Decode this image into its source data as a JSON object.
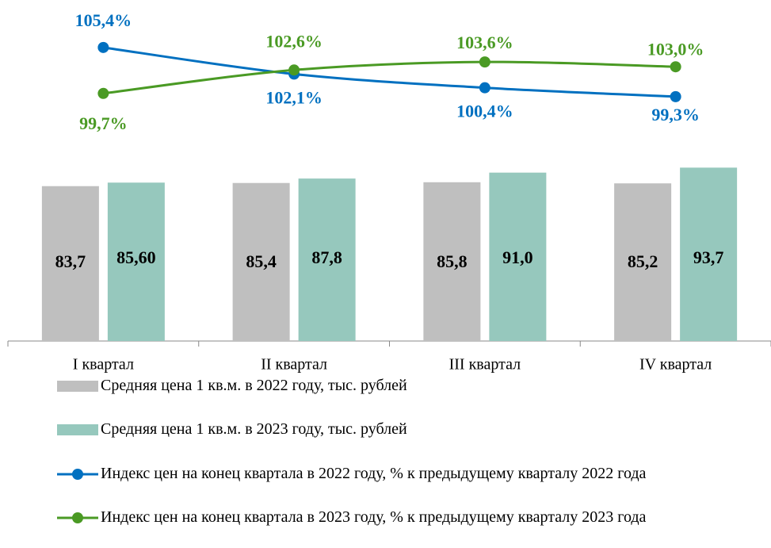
{
  "chart_data": {
    "type": "bar",
    "categories": [
      "I квартал",
      "II квартал",
      "III квартал",
      "IV квартал"
    ],
    "ylim": [
      0,
      180
    ],
    "y2lim": [
      69,
      110.3
    ],
    "series": [
      {
        "name": "Средняя цена 1 кв.м. в 2022 году, тыс. рублей",
        "type": "bar",
        "color": "#bfbfbf",
        "values": [
          83.7,
          85.4,
          85.8,
          85.2
        ],
        "value_labels": [
          "83,7",
          "85,4",
          "85,8",
          "85,2"
        ]
      },
      {
        "name": "Средняя цена 1 кв.м. в 2023 году, тыс. рублей",
        "type": "bar",
        "color": "#96c8bd",
        "values": [
          85.6,
          87.8,
          91.0,
          93.7
        ],
        "value_labels": [
          "85,60",
          "87,8",
          "91,0",
          "93,7"
        ]
      },
      {
        "name": "Индекс цен на конец квартала в 2022 году, % к предыдущему кварталу 2022 года",
        "type": "line",
        "axis": "y2",
        "color": "#0070c0",
        "values": [
          105.4,
          102.1,
          100.4,
          99.3
        ],
        "value_labels": [
          "105,4%",
          "102,1%",
          "100,4%",
          "99,3%"
        ]
      },
      {
        "name": "Индекс цен на конец квартала в 2023 году, % к предыдущему кварталу 2023 года",
        "type": "line",
        "axis": "y2",
        "color": "#4a9a24",
        "values": [
          99.7,
          102.6,
          103.6,
          103.0
        ],
        "value_labels": [
          "99,7%",
          "102,6%",
          "103,6%",
          "103,0%"
        ]
      }
    ]
  }
}
